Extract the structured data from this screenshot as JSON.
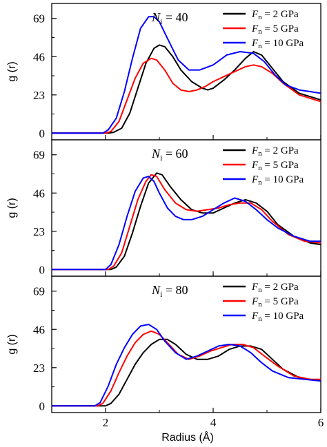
{
  "chart_data": [
    {
      "type": "line",
      "annotation": {
        "symbol": "N",
        "sub": "i",
        "rest": " = 40"
      },
      "xlim": [
        1,
        6
      ],
      "ylim": [
        -4,
        78
      ],
      "yticks": [
        0,
        23,
        46,
        69
      ],
      "xticks": [
        2,
        4,
        6
      ],
      "ylabel": "g (r)",
      "xlabel": "",
      "series": [
        {
          "name": "2 GPa",
          "color": "#000000",
          "x": [
            1,
            2.05,
            2.15,
            2.3,
            2.45,
            2.6,
            2.75,
            2.9,
            3.0,
            3.1,
            3.25,
            3.4,
            3.6,
            3.8,
            3.9,
            4.0,
            4.2,
            4.4,
            4.6,
            4.75,
            4.9,
            5.1,
            5.3,
            5.6,
            6
          ],
          "y": [
            0,
            0,
            0.5,
            3,
            12,
            27,
            42,
            51,
            53,
            52,
            46,
            38,
            31,
            27,
            26,
            27,
            32,
            38,
            45,
            49,
            47,
            39,
            31,
            24,
            20
          ]
        },
        {
          "name": "5 GPa",
          "color": "#ff0000",
          "x": [
            1,
            2.0,
            2.1,
            2.25,
            2.4,
            2.55,
            2.7,
            2.85,
            2.95,
            3.1,
            3.25,
            3.4,
            3.55,
            3.7,
            3.85,
            4.0,
            4.2,
            4.4,
            4.6,
            4.75,
            4.9,
            5.1,
            5.3,
            5.6,
            6
          ],
          "y": [
            0,
            0,
            1,
            7,
            20,
            33,
            42,
            45,
            44,
            38,
            30,
            26,
            25,
            26,
            28,
            31,
            34,
            37,
            40,
            41,
            40,
            36,
            30,
            23,
            19
          ]
        },
        {
          "name": "10 GPa",
          "color": "#0000ff",
          "x": [
            1,
            1.95,
            2.05,
            2.2,
            2.35,
            2.5,
            2.65,
            2.8,
            2.9,
            3.0,
            3.15,
            3.35,
            3.55,
            3.75,
            4.0,
            4.25,
            4.5,
            4.75,
            4.95,
            5.15,
            5.35,
            5.6,
            5.8,
            6
          ],
          "y": [
            0,
            0,
            2,
            9,
            25,
            45,
            63,
            70,
            70,
            67,
            57,
            44,
            38,
            38,
            41,
            47,
            49,
            48,
            43,
            35,
            29,
            26,
            25,
            24
          ]
        }
      ]
    },
    {
      "type": "line",
      "annotation": {
        "symbol": "N",
        "sub": "i",
        "rest": " = 60"
      },
      "xlim": [
        1,
        6
      ],
      "ylim": [
        -4,
        78
      ],
      "yticks": [
        0,
        23,
        46,
        69
      ],
      "xticks": [
        2,
        4,
        6
      ],
      "ylabel": "g (r)",
      "xlabel": "",
      "series": [
        {
          "name": "2 GPa",
          "color": "#000000",
          "x": [
            1,
            2.1,
            2.2,
            2.35,
            2.5,
            2.65,
            2.8,
            2.95,
            3.05,
            3.2,
            3.4,
            3.6,
            3.8,
            4.0,
            4.2,
            4.4,
            4.6,
            4.8,
            5.0,
            5.2,
            5.5,
            5.8,
            6
          ],
          "y": [
            0,
            0,
            1.5,
            8,
            22,
            38,
            52,
            58,
            57,
            50,
            42,
            36,
            34,
            34,
            37,
            40,
            42,
            40,
            35,
            27,
            20,
            16,
            15
          ]
        },
        {
          "name": "5 GPa",
          "color": "#ff0000",
          "x": [
            1,
            2.05,
            2.15,
            2.3,
            2.45,
            2.6,
            2.75,
            2.85,
            2.95,
            3.1,
            3.3,
            3.5,
            3.7,
            3.9,
            4.1,
            4.3,
            4.5,
            4.7,
            4.9,
            5.1,
            5.4,
            5.7,
            6
          ],
          "y": [
            0,
            0,
            2,
            10,
            26,
            42,
            53,
            57,
            56,
            48,
            40,
            36,
            35,
            36,
            37,
            39,
            40,
            40,
            36,
            29,
            21,
            17,
            16
          ]
        },
        {
          "name": "10 GPa",
          "color": "#0000ff",
          "x": [
            1,
            2.0,
            2.1,
            2.25,
            2.4,
            2.55,
            2.7,
            2.8,
            2.9,
            3.0,
            3.15,
            3.3,
            3.45,
            3.6,
            3.8,
            4.0,
            4.2,
            4.4,
            4.6,
            4.8,
            5.0,
            5.2,
            5.5,
            5.8,
            6
          ],
          "y": [
            0,
            0,
            3,
            15,
            32,
            47,
            55,
            56,
            53,
            46,
            37,
            32,
            30,
            30,
            32,
            36,
            40,
            43,
            41,
            36,
            30,
            25,
            20,
            17,
            17
          ]
        }
      ]
    },
    {
      "type": "line",
      "annotation": {
        "symbol": "N",
        "sub": "i",
        "rest": " = 80"
      },
      "xlim": [
        1,
        6
      ],
      "ylim": [
        -4,
        78
      ],
      "yticks": [
        0,
        23,
        46,
        69
      ],
      "xticks": [
        2,
        4,
        6
      ],
      "ylabel": "g (r)",
      "xlabel": "Radius (Å)",
      "series": [
        {
          "name": "2 GPa",
          "color": "#000000",
          "x": [
            1,
            2.0,
            2.1,
            2.25,
            2.4,
            2.55,
            2.7,
            2.85,
            3.0,
            3.15,
            3.3,
            3.5,
            3.7,
            3.9,
            4.1,
            4.3,
            4.5,
            4.7,
            4.9,
            5.1,
            5.3,
            5.6,
            6
          ],
          "y": [
            0,
            0,
            1.5,
            7,
            16,
            25,
            32,
            37,
            40,
            40,
            37,
            31,
            28,
            28,
            30,
            34,
            36,
            36,
            34,
            28,
            22,
            17,
            15
          ]
        },
        {
          "name": "5 GPa",
          "color": "#ff0000",
          "x": [
            1,
            1.85,
            1.95,
            2.1,
            2.25,
            2.4,
            2.55,
            2.7,
            2.85,
            3.0,
            3.15,
            3.35,
            3.55,
            3.75,
            3.95,
            4.15,
            4.35,
            4.55,
            4.75,
            4.95,
            5.2,
            5.5,
            5.8,
            6
          ],
          "y": [
            0,
            0,
            1.5,
            9,
            20,
            30,
            38,
            43,
            45,
            43,
            38,
            31,
            28,
            30,
            33,
            35,
            37,
            37,
            35,
            30,
            24,
            18,
            16,
            16
          ]
        },
        {
          "name": "10 GPa",
          "color": "#0000ff",
          "x": [
            1,
            1.8,
            1.9,
            2.05,
            2.2,
            2.35,
            2.5,
            2.65,
            2.8,
            2.95,
            3.1,
            3.3,
            3.5,
            3.7,
            3.9,
            4.1,
            4.3,
            4.5,
            4.7,
            4.9,
            5.1,
            5.4,
            5.7,
            6
          ],
          "y": [
            0,
            0,
            2,
            12,
            25,
            35,
            43,
            48,
            49,
            46,
            39,
            32,
            28,
            30,
            33,
            36,
            37,
            36,
            32,
            26,
            21,
            17,
            16,
            15
          ]
        }
      ]
    }
  ],
  "legend_prefix": {
    "symbol": "F",
    "sub": "n",
    "eq": " = "
  }
}
